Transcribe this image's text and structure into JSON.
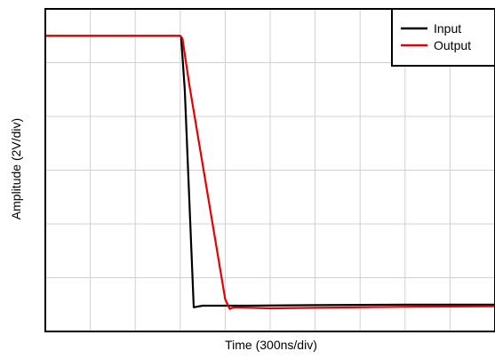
{
  "chart_data": {
    "type": "line",
    "xlabel": "Time (300ns/div)",
    "ylabel": "Amplitude (2V/div)",
    "xlim": [
      0,
      10
    ],
    "ylim": [
      0,
      6
    ],
    "grid": true,
    "legend": "top-right",
    "series": [
      {
        "name": "Input",
        "color": "#000000",
        "x": [
          0,
          3.0,
          3.02,
          3.1,
          3.2,
          3.3,
          3.5,
          4.5,
          6,
          8,
          10
        ],
        "y": [
          5.5,
          5.5,
          5.48,
          4.5,
          2.5,
          0.45,
          0.48,
          0.48,
          0.49,
          0.5,
          0.5
        ]
      },
      {
        "name": "Output",
        "color": "#e60000",
        "x": [
          0,
          3.0,
          3.05,
          3.2,
          4.0,
          4.1,
          4.2,
          5,
          6,
          8,
          10
        ],
        "y": [
          5.5,
          5.5,
          5.45,
          4.6,
          0.6,
          0.42,
          0.45,
          0.43,
          0.44,
          0.46,
          0.47
        ]
      }
    ]
  }
}
